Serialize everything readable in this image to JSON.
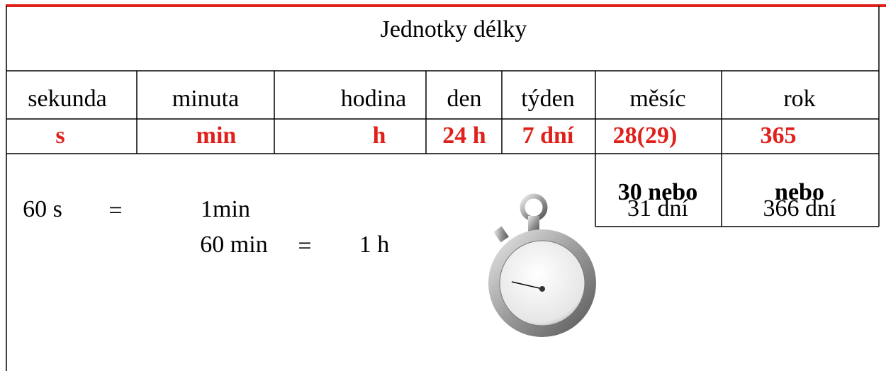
{
  "header": {
    "title": "Jednotky délky"
  },
  "table": {
    "names": [
      "sekunda",
      "minuta",
      "hodina",
      "den",
      "týden",
      "měsíc",
      "rok"
    ],
    "units": [
      "s",
      "min",
      "h",
      "24 h",
      "7 dní",
      "28(29)",
      "365"
    ]
  },
  "notes": {
    "month_alt": "30 nebo",
    "month_days": "31 dní",
    "year_alt": "nebo",
    "year_days": "366 dní"
  },
  "equations": [
    [
      "60 s",
      "=",
      "1min"
    ],
    [
      "60 min",
      "=",
      "1 h"
    ]
  ]
}
